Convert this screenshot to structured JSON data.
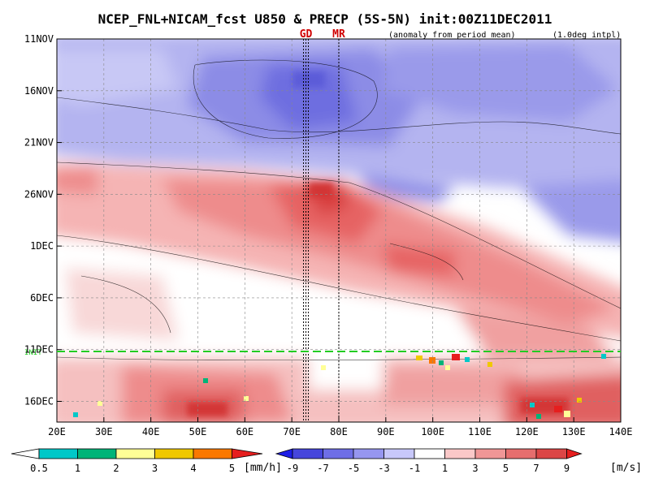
{
  "chart_data": {
    "type": "heatmap",
    "title": "NCEP_FNL+NICAM_fcst U850 & PRECP (5S-5N) init:00Z11DEC2011",
    "subtitle_left": "(anomaly from period mean)",
    "subtitle_right": "(1.0deg intpl)",
    "xlabel": "",
    "ylabel": "",
    "x_ticks": [
      "20E",
      "30E",
      "40E",
      "50E",
      "60E",
      "70E",
      "80E",
      "90E",
      "100E",
      "110E",
      "120E",
      "130E",
      "140E"
    ],
    "y_ticks": [
      "11NOV",
      "16NOV",
      "21NOV",
      "26NOV",
      "1DEC",
      "6DEC",
      "11DEC",
      "16DEC"
    ],
    "xlim": [
      20,
      140
    ],
    "ylim_days_label": [
      "11NOV",
      "18DEC"
    ],
    "markers": [
      {
        "label": "GD",
        "lon": 73
      },
      {
        "label": "MR",
        "lon": 80
      }
    ],
    "forecast_init_label": "INIT",
    "forecast_init_date": "11DEC",
    "precip_legend": {
      "unit": "[mm/h]",
      "ticks": [
        "0.5",
        "1",
        "2",
        "3",
        "4",
        "5"
      ],
      "colors": [
        "#00c8c8",
        "#00b478",
        "#ffff96",
        "#f0c800",
        "#fa7800",
        "#e61e1e"
      ]
    },
    "wind_legend": {
      "unit": "[m/s]",
      "ticks": [
        "-9",
        "-7",
        "-5",
        "-3",
        "-1",
        "1",
        "3",
        "5",
        "7",
        "9"
      ],
      "colors": [
        "#1e1ee6",
        "#4646dc",
        "#6e6ee6",
        "#9696f0",
        "#c8c8fa",
        "#ffffff",
        "#fac8c8",
        "#f09696",
        "#e66e6e",
        "#dc4646",
        "#e61e1e"
      ]
    }
  }
}
